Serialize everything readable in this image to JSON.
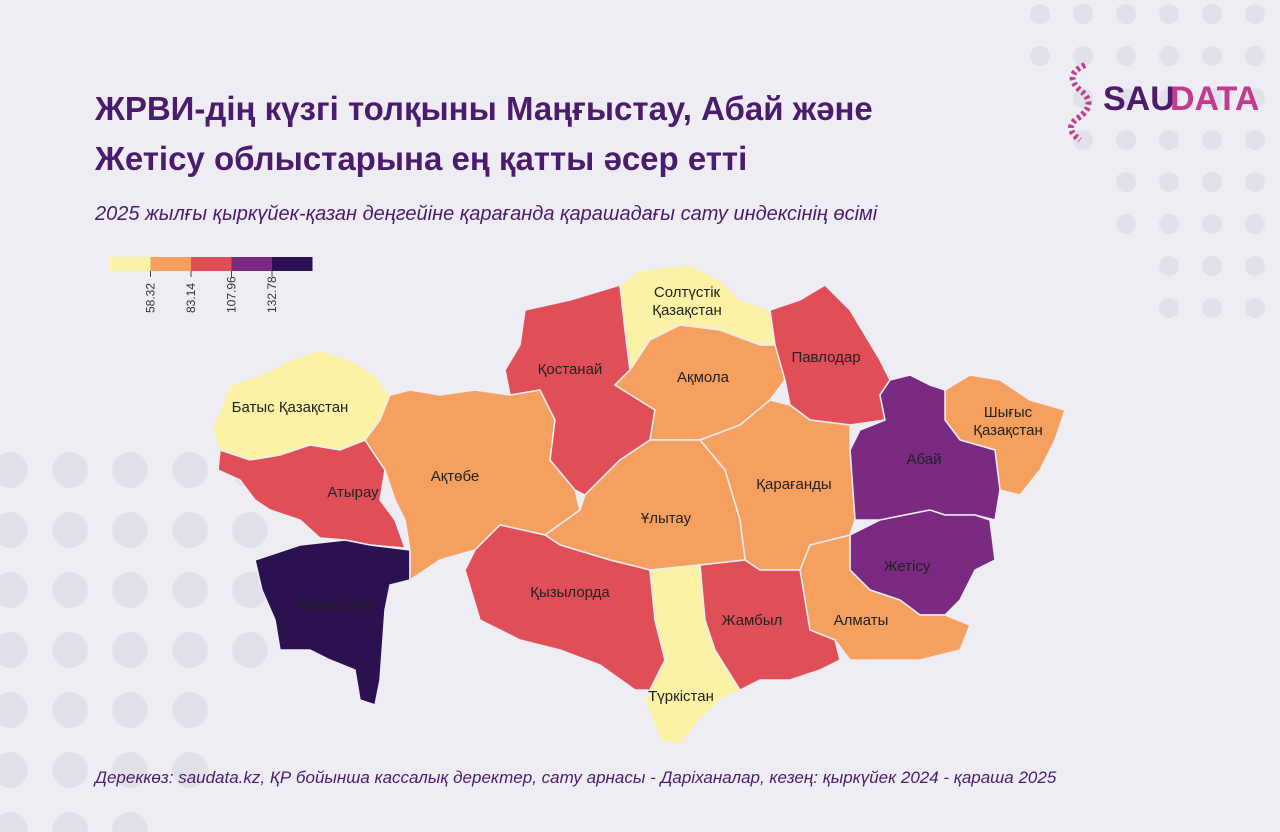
{
  "chart_data": {
    "type": "choropleth",
    "title": [
      "ЖРВИ-дің күзгі толқыны Маңғыстау, Абай және",
      "Жетісу облыстарына ең қатты әсер етті"
    ],
    "subtitle": "2025 жылғы қыркүйек-қазан деңгейіне қарағанда қарашадағы сату индексінің өсімі",
    "legend": {
      "colors": [
        "#fbf2a6",
        "#f5a05e",
        "#e04f57",
        "#7a2a80",
        "#2b1150"
      ],
      "ticks": [
        58.32,
        83.14,
        107.96,
        132.78
      ]
    },
    "regions": [
      {
        "name": "Батыс Қазақстан",
        "color": "#fbf2a6"
      },
      {
        "name": "Атырау",
        "color": "#e04f57"
      },
      {
        "name": "Маңғыстау",
        "color": "#2b1150"
      },
      {
        "name": "Ақтөбе",
        "color": "#f5a05e"
      },
      {
        "name": "Қостанай",
        "color": "#e04f57"
      },
      {
        "name": "Солтүстік Қазақстан",
        "color": "#fbf2a6"
      },
      {
        "name": "Ақмола",
        "color": "#f5a05e"
      },
      {
        "name": "Павлодар",
        "color": "#e04f57"
      },
      {
        "name": "Шығыс Қазақстан",
        "color": "#f5a05e"
      },
      {
        "name": "Абай",
        "color": "#7a2a80"
      },
      {
        "name": "Жетісу",
        "color": "#7a2a80"
      },
      {
        "name": "Алматы",
        "color": "#f5a05e"
      },
      {
        "name": "Қарағанды",
        "color": "#f5a05e"
      },
      {
        "name": "Ұлытау",
        "color": "#f5a05e"
      },
      {
        "name": "Қызылорда",
        "color": "#e04f57"
      },
      {
        "name": "Түркістан",
        "color": "#fbf2a6"
      },
      {
        "name": "Жамбыл",
        "color": "#e04f57"
      }
    ],
    "source": "Дереккөз: saudata.kz, ҚР бойынша кассалық деректер, сату арнасы - Даріханалар, кезең: қыркүйек 2024 - қараша 2025"
  },
  "logo": {
    "part1": "SAU",
    "part2": "DATA"
  }
}
